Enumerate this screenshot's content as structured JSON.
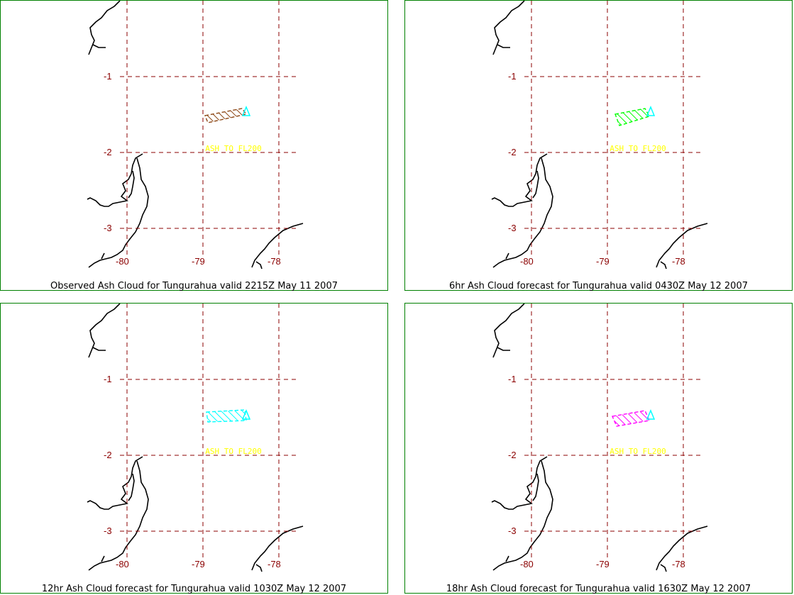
{
  "colors": {
    "frame": "#008000",
    "grid": "#8b0000",
    "tick_label": "#8b0000",
    "coast": "#000000",
    "ash_label": "#ffff00",
    "volcano_marker": "#00ffff"
  },
  "panels": [
    {
      "caption": "Observed Ash Cloud for Tungurahua valid 2215Z May 11 2007",
      "ash_label": "ASH TO FL200",
      "cloud_color": "#8b4513",
      "lat_labels": [
        "-1",
        "-2",
        "-3"
      ],
      "lon_labels": [
        "-80",
        "-79",
        "-78"
      ]
    },
    {
      "caption": "6hr Ash Cloud forecast for Tungurahua valid 0430Z May 12 2007",
      "ash_label": "ASH TO FL200",
      "cloud_color": "#00ff00",
      "lat_labels": [
        "-1",
        "-2",
        "-3"
      ],
      "lon_labels": [
        "-80",
        "-79",
        "-78"
      ]
    },
    {
      "caption": "12hr Ash Cloud forecast for Tungurahua valid 1030Z May 12 2007",
      "ash_label": "ASH TO FL200",
      "cloud_color": "#00ffff",
      "lat_labels": [
        "-1",
        "-2",
        "-3"
      ],
      "lon_labels": [
        "-80",
        "-79",
        "-78"
      ]
    },
    {
      "caption": "18hr Ash Cloud forecast for Tungurahua valid 1630Z May 12 2007",
      "ash_label": "ASH TO FL200",
      "cloud_color": "#ff00ff",
      "lat_labels": [
        "-1",
        "-2",
        "-3"
      ],
      "lon_labels": [
        "-80",
        "-79",
        "-78"
      ]
    }
  ]
}
